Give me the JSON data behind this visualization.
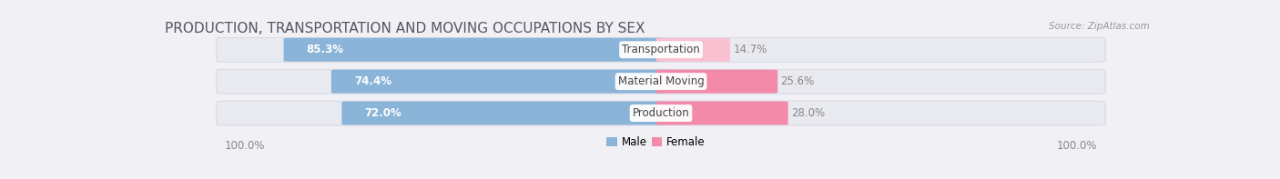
{
  "title": "PRODUCTION, TRANSPORTATION AND MOVING OCCUPATIONS BY SEX",
  "source": "Source: ZipAtlas.com",
  "categories": [
    "Transportation",
    "Material Moving",
    "Production"
  ],
  "male_values": [
    85.3,
    74.4,
    72.0
  ],
  "female_values": [
    14.7,
    25.6,
    28.0
  ],
  "male_color": "#8ab4d8",
  "female_color": "#f48aaa",
  "female_color_light": "#f8c0d0",
  "bar_bg_color": "#e8eaf0",
  "male_label": "Male",
  "female_label": "Female",
  "left_label": "100.0%",
  "right_label": "100.0%",
  "title_fontsize": 11,
  "source_fontsize": 7.5,
  "axis_label_fontsize": 8.5,
  "bar_label_fontsize": 8.5,
  "cat_label_fontsize": 8.5,
  "legend_fontsize": 8.5,
  "background_color": "#f0f0f5"
}
